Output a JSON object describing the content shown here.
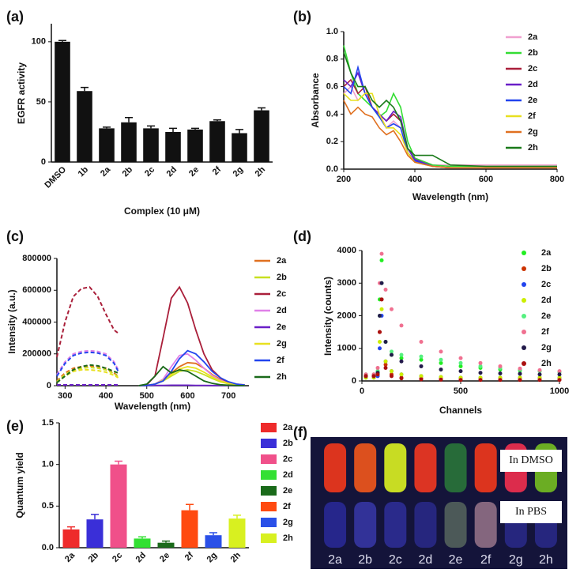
{
  "chart_data": [
    {
      "type": "bar",
      "panel_label": "(a)",
      "x_label": "Complex (10 μM)",
      "y_label": "EGFR activity",
      "categories": [
        "DMSO",
        "1b",
        "2a",
        "2b",
        "2c",
        "2d",
        "2e",
        "2f",
        "2g",
        "2h"
      ],
      "values": [
        100,
        59,
        28,
        33,
        28,
        25,
        27,
        34,
        24,
        43
      ],
      "errors": [
        1,
        3,
        1,
        4,
        2,
        3,
        1,
        1,
        3,
        2
      ],
      "color": "#111111",
      "ylim": [
        0,
        115
      ],
      "yticks": [
        0,
        50,
        100
      ]
    },
    {
      "type": "line",
      "panel_label": "(b)",
      "x_label": "Wavelength (nm)",
      "y_label": "Absorbance",
      "x": [
        200,
        220,
        240,
        260,
        280,
        300,
        320,
        340,
        360,
        380,
        400,
        450,
        500,
        600,
        800
      ],
      "xlim": [
        200,
        800
      ],
      "xticks": [
        200,
        400,
        600,
        800
      ],
      "ylim": [
        0,
        1.0
      ],
      "yticks": [
        {
          "value": 0,
          "label": "0.0"
        },
        {
          "value": 0.2,
          "label": "0.2"
        },
        {
          "value": 0.4,
          "label": "0.4"
        },
        {
          "value": 0.6,
          "label": "0.6"
        },
        {
          "value": 0.8,
          "label": "0.8"
        },
        {
          "value": 1.0,
          "label": "1.0"
        }
      ],
      "series": [
        {
          "name": "2a",
          "color": "#f0a0d0",
          "values": [
            0.55,
            0.6,
            0.5,
            0.55,
            0.45,
            0.4,
            0.3,
            0.35,
            0.3,
            0.15,
            0.08,
            0.03,
            0.03,
            0.03,
            0.03
          ]
        },
        {
          "name": "2b",
          "color": "#33dd33",
          "values": [
            0.9,
            0.7,
            0.55,
            0.5,
            0.45,
            0.38,
            0.42,
            0.55,
            0.45,
            0.2,
            0.08,
            0.03,
            0.02,
            0.02,
            0.02
          ]
        },
        {
          "name": "2c",
          "color": "#aa1f3a",
          "values": [
            0.6,
            0.65,
            0.55,
            0.6,
            0.45,
            0.4,
            0.35,
            0.4,
            0.35,
            0.15,
            0.07,
            0.02,
            0.01,
            0.01,
            0.01
          ]
        },
        {
          "name": "2d",
          "color": "#6a1fc8",
          "values": [
            0.65,
            0.6,
            0.7,
            0.55,
            0.45,
            0.4,
            0.35,
            0.42,
            0.38,
            0.15,
            0.07,
            0.02,
            0.01,
            0.01,
            0.01
          ]
        },
        {
          "name": "2e",
          "color": "#2244ee",
          "values": [
            0.6,
            0.55,
            0.74,
            0.55,
            0.45,
            0.38,
            0.3,
            0.33,
            0.3,
            0.12,
            0.06,
            0.02,
            0.01,
            0.01,
            0.01
          ]
        },
        {
          "name": "2f",
          "color": "#e8e020",
          "values": [
            0.55,
            0.5,
            0.5,
            0.55,
            0.55,
            0.4,
            0.3,
            0.3,
            0.25,
            0.12,
            0.05,
            0.02,
            0.01,
            0.01,
            0.01
          ]
        },
        {
          "name": "2g",
          "color": "#e07020",
          "values": [
            0.5,
            0.4,
            0.45,
            0.4,
            0.38,
            0.3,
            0.25,
            0.28,
            0.2,
            0.1,
            0.05,
            0.02,
            0.01,
            0.01,
            0.01
          ]
        },
        {
          "name": "2h",
          "color": "#1a7a1a",
          "values": [
            0.85,
            0.7,
            0.6,
            0.6,
            0.5,
            0.45,
            0.5,
            0.45,
            0.35,
            0.15,
            0.1,
            0.1,
            0.03,
            0.02,
            0.02
          ]
        }
      ]
    },
    {
      "type": "spectra",
      "panel_label": "(c)",
      "x_label": "Wavelength (nm)",
      "y_label": "Intensity (a.u.)",
      "x_excitation": [
        280,
        300,
        320,
        340,
        360,
        380,
        400,
        420,
        430
      ],
      "x_emission": [
        480,
        500,
        520,
        540,
        560,
        580,
        600,
        620,
        640,
        660,
        680,
        700,
        720,
        740
      ],
      "xlim": [
        280,
        750
      ],
      "xticks": [
        300,
        400,
        500,
        600,
        700
      ],
      "ylim": [
        0,
        800000
      ],
      "yticks": [
        0,
        200000,
        400000,
        600000,
        800000
      ],
      "series": [
        {
          "name": "2a",
          "color": "#e07020",
          "excitation": [
            30000,
            80000,
            110000,
            120000,
            125000,
            120000,
            110000,
            80000,
            60000
          ],
          "emission": [
            0,
            2000,
            10000,
            40000,
            80000,
            120000,
            145000,
            140000,
            110000,
            70000,
            40000,
            20000,
            10000,
            5000
          ]
        },
        {
          "name": "2b",
          "color": "#c8e020",
          "excitation": [
            25000,
            70000,
            100000,
            110000,
            115000,
            110000,
            100000,
            75000,
            55000
          ],
          "emission": [
            0,
            2000,
            10000,
            30000,
            60000,
            90000,
            100000,
            90000,
            70000,
            45000,
            25000,
            12000,
            6000,
            3000
          ]
        },
        {
          "name": "2c",
          "color": "#aa1f3a",
          "excitation": [
            180000,
            400000,
            560000,
            610000,
            620000,
            560000,
            450000,
            350000,
            330000
          ],
          "emission": [
            0,
            5000,
            60000,
            300000,
            550000,
            620000,
            520000,
            350000,
            200000,
            100000,
            50000,
            20000,
            8000,
            3000
          ]
        },
        {
          "name": "2d",
          "color": "#e080e8",
          "excitation": [
            70000,
            150000,
            200000,
            215000,
            220000,
            215000,
            200000,
            150000,
            100000
          ],
          "emission": [
            0,
            2000,
            10000,
            40000,
            120000,
            190000,
            200000,
            160000,
            110000,
            65000,
            35000,
            15000,
            7000,
            3000
          ]
        },
        {
          "name": "2e",
          "color": "#6a1fc8",
          "excitation": [
            5000,
            5000,
            5000,
            5000,
            5000,
            5000,
            5000,
            5000,
            5000
          ],
          "emission": [
            0,
            1000,
            2000,
            2000,
            3000,
            3000,
            3000,
            2000,
            2000,
            1000,
            1000,
            1000,
            0,
            0
          ]
        },
        {
          "name": "2g",
          "color": "#e8e020",
          "excitation": [
            20000,
            60000,
            90000,
            100000,
            100000,
            95000,
            85000,
            65000,
            50000
          ],
          "emission": [
            0,
            2000,
            10000,
            35000,
            70000,
            105000,
            120000,
            110000,
            85000,
            55000,
            30000,
            15000,
            7000,
            3000
          ]
        },
        {
          "name": "2f",
          "color": "#2244ee",
          "excitation": [
            60000,
            140000,
            190000,
            205000,
            210000,
            205000,
            190000,
            140000,
            90000
          ],
          "emission": [
            0,
            2000,
            10000,
            30000,
            90000,
            170000,
            220000,
            200000,
            150000,
            90000,
            50000,
            25000,
            10000,
            4000
          ]
        },
        {
          "name": "2h",
          "color": "#1a6a1a",
          "excitation": [
            20000,
            60000,
            100000,
            120000,
            130000,
            125000,
            110000,
            90000,
            80000
          ],
          "emission": [
            0,
            10000,
            60000,
            120000,
            80000,
            100000,
            90000,
            60000,
            30000,
            15000,
            6000,
            3000,
            1000,
            500
          ]
        }
      ]
    },
    {
      "type": "scatter",
      "panel_label": "(d)",
      "x_label": "Channels",
      "y_label": "Intensity (counts)",
      "x": [
        20,
        60,
        80,
        90,
        100,
        120,
        150,
        200,
        300,
        400,
        500,
        600,
        700,
        800,
        900,
        1000
      ],
      "xlim": [
        0,
        1000
      ],
      "xticks": [
        0,
        500,
        1000
      ],
      "ylim": [
        0,
        4000
      ],
      "yticks": [
        0,
        1000,
        2000,
        3000,
        4000
      ],
      "series": [
        {
          "name": "2a",
          "color": "#22ee22",
          "values": [
            150,
            150,
            300,
            2500,
            3700,
            1200,
            800,
            700,
            650,
            550,
            450,
            400,
            350,
            320,
            300,
            280
          ]
        },
        {
          "name": "2b",
          "color": "#cc3300",
          "values": [
            150,
            150,
            200,
            1500,
            2500,
            500,
            200,
            100,
            80,
            70,
            60,
            50,
            50,
            50,
            50,
            50
          ]
        },
        {
          "name": "2c",
          "color": "#2244ee",
          "values": [
            100,
            100,
            150,
            1000,
            2000,
            600,
            300,
            200,
            150,
            120,
            100,
            100,
            100,
            100,
            100,
            100
          ]
        },
        {
          "name": "2d",
          "color": "#ccee00",
          "values": [
            100,
            100,
            200,
            1200,
            2200,
            600,
            300,
            200,
            150,
            120,
            100,
            100,
            100,
            100,
            100,
            100
          ]
        },
        {
          "name": "2e",
          "color": "#55f080",
          "values": [
            200,
            200,
            300,
            2000,
            3000,
            1200,
            900,
            800,
            750,
            650,
            550,
            450,
            400,
            350,
            300,
            280
          ]
        },
        {
          "name": "2f",
          "color": "#f07090",
          "values": [
            200,
            200,
            400,
            3000,
            3900,
            2800,
            2200,
            1700,
            1200,
            900,
            700,
            550,
            450,
            380,
            330,
            300
          ]
        },
        {
          "name": "2g",
          "color": "#221a4a",
          "values": [
            150,
            150,
            250,
            2000,
            3000,
            1200,
            800,
            600,
            450,
            350,
            300,
            250,
            230,
            220,
            200,
            200
          ]
        },
        {
          "name": "2h",
          "color": "#aa1010",
          "values": [
            150,
            150,
            200,
            1500,
            2500,
            400,
            150,
            80,
            50,
            40,
            30,
            30,
            30,
            30,
            30,
            30
          ]
        }
      ]
    },
    {
      "type": "bar",
      "panel_label": "(e)",
      "y_label": "Quantum yield",
      "categories": [
        "2a",
        "2b",
        "2c",
        "2d",
        "2e",
        "2f",
        "2g",
        "2h"
      ],
      "values": [
        0.22,
        0.34,
        1.0,
        0.11,
        0.06,
        0.45,
        0.15,
        0.35
      ],
      "errors": [
        0.03,
        0.06,
        0.04,
        0.02,
        0.02,
        0.07,
        0.03,
        0.04
      ],
      "colors": [
        "#ee2b2b",
        "#3a2fd8",
        "#f0508a",
        "#33e033",
        "#1a6a1a",
        "#ff4a10",
        "#2a50e8",
        "#d8f020"
      ],
      "legend": true,
      "ylim": [
        0,
        1.5
      ],
      "yticks": [
        {
          "value": 0,
          "label": "0.0"
        },
        {
          "value": 0.5,
          "label": "0.5"
        },
        {
          "value": 1.0,
          "label": "1.0"
        },
        {
          "value": 1.5,
          "label": "1.5"
        }
      ]
    },
    {
      "type": "photo",
      "panel_label": "(f)",
      "captions": [
        "In DMSO",
        "In PBS"
      ],
      "labels": [
        "2a",
        "2b",
        "2c",
        "2d",
        "2e",
        "2f",
        "2g",
        "2h"
      ],
      "tube_colors_top": [
        "#ff3a1a",
        "#ff5a1a",
        "#e8ff20",
        "#ff3a20",
        "#2a7a3a",
        "#ff3a1a",
        "#ff3050",
        "#7ac820"
      ],
      "tube_colors_bottom": [
        "#2a2aa0",
        "#3a3ab0",
        "#3030a0",
        "#2a2a90",
        "#5a6a60",
        "#a07a90",
        "#2a2a90",
        "#2a2a90"
      ]
    }
  ]
}
